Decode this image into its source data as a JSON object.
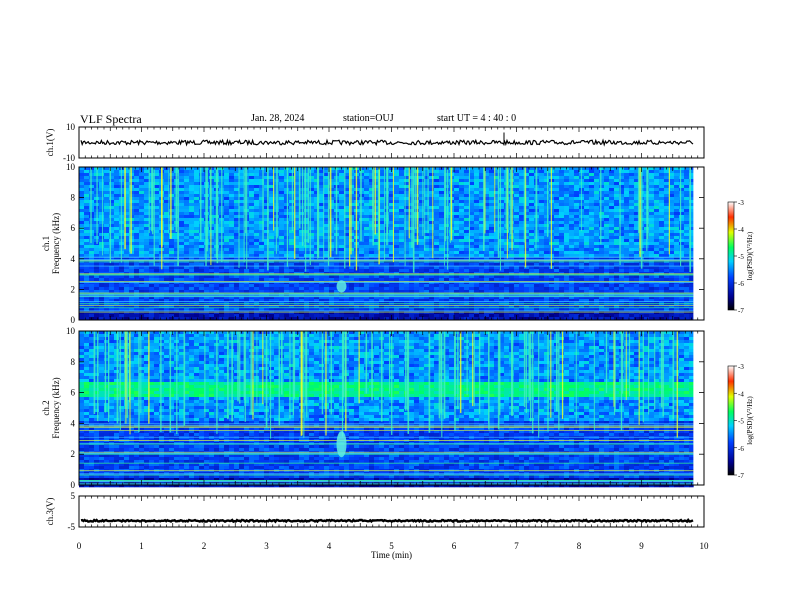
{
  "header": {
    "title": "VLF Spectra",
    "date": "Jan. 28, 2024",
    "station": "station=OUJ",
    "start": "start UT =  4 : 40 : 0"
  },
  "chart_data": [
    {
      "type": "line",
      "panel": "ch1-waveform",
      "ylabel": "ch.1(V)",
      "ylim": [
        -10,
        10
      ],
      "yticks": [
        "10",
        "-10"
      ],
      "xlim": [
        0,
        10
      ],
      "series": [
        {
          "x": [
            0,
            9.83
          ],
          "y": [
            0,
            0
          ]
        }
      ],
      "trace_color": "#000000"
    },
    {
      "type": "heatmap",
      "panel": "ch1-spectrogram",
      "ylabel": "ch.1  Frequency (kHz)",
      "ylim": [
        0,
        10
      ],
      "yticks": [
        "0",
        "2",
        "4",
        "6",
        "8",
        "10"
      ],
      "xlim": [
        0,
        10
      ],
      "data_end_min": 9.83,
      "colorbar": {
        "label": "log(PSD)(V²/Hz)",
        "ticks": [
          "-3",
          "-4",
          "-5",
          "-6",
          "-7"
        ],
        "range": [
          -7,
          -3
        ]
      },
      "features": {
        "noise_band_khz": null,
        "event_time_min": 4.2,
        "event_freq_khz": [
          1.8,
          2.6
        ]
      }
    },
    {
      "type": "heatmap",
      "panel": "ch2-spectrogram",
      "ylabel": "ch.2  Frequency (kHz)",
      "ylim": [
        0,
        10
      ],
      "yticks": [
        "0",
        "2",
        "4",
        "6",
        "8",
        "10"
      ],
      "xlim": [
        0,
        10
      ],
      "data_end_min": 9.83,
      "colorbar": {
        "label": "log(PSD)(V²/Hz)",
        "ticks": [
          "-3",
          "-4",
          "-5",
          "-6",
          "-7"
        ],
        "range": [
          -7,
          -3
        ]
      },
      "features": {
        "noise_band_khz": [
          5.9,
          6.7
        ],
        "event_time_min": 4.2,
        "event_freq_khz": [
          1.8,
          3.5
        ]
      }
    },
    {
      "type": "line",
      "panel": "ch3-waveform",
      "ylabel": "ch.3(V)",
      "ylim": [
        -5,
        5
      ],
      "yticks": [
        "5",
        "-5"
      ],
      "xlim": [
        0,
        10
      ],
      "xticks": [
        "0",
        "1",
        "2",
        "3",
        "4",
        "5",
        "6",
        "7",
        "8",
        "9",
        "10"
      ],
      "xlabel": "Time (min)",
      "series": [
        {
          "x": [
            0,
            9.83
          ],
          "y": [
            -3,
            -3
          ]
        }
      ],
      "trace_color": "#000000"
    }
  ]
}
